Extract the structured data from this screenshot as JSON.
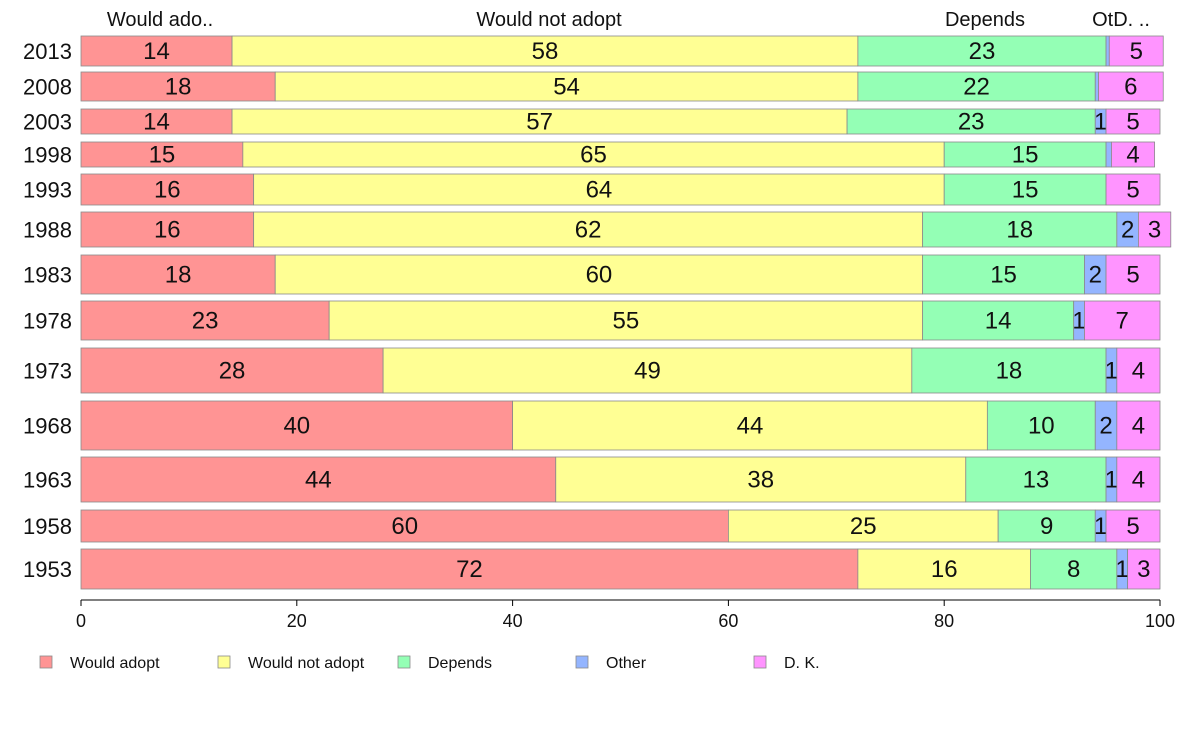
{
  "chart_data": {
    "type": "bar",
    "orientation": "horizontal",
    "stacked": true,
    "xlim": [
      0,
      100
    ],
    "x_ticks": [
      0,
      20,
      40,
      60,
      80,
      100
    ],
    "column_headers": [
      "Would ado..",
      "Would not adopt",
      "Depends",
      "OtD. .."
    ],
    "legend_position": "bottom",
    "colors": {
      "Would adopt": "#ff9494",
      "Would not adopt": "#ffff94",
      "Depends": "#94ffb5",
      "Other": "#94b5ff",
      "D. K.": "#ff94ff"
    },
    "series_names": [
      "Would adopt",
      "Would not adopt",
      "Depends",
      "Other",
      "D. K."
    ],
    "categories": [
      "2013",
      "2008",
      "2003",
      "1998",
      "1993",
      "1988",
      "1983",
      "1978",
      "1973",
      "1968",
      "1963",
      "1958",
      "1953"
    ],
    "rows": [
      {
        "year": "2013",
        "values": [
          14,
          58,
          23,
          0.3,
          5
        ],
        "labels": [
          "14",
          "58",
          "23",
          "",
          "5"
        ]
      },
      {
        "year": "2008",
        "values": [
          18,
          54,
          22,
          0.3,
          6
        ],
        "labels": [
          "18",
          "54",
          "22",
          "",
          "6"
        ]
      },
      {
        "year": "2003",
        "values": [
          14,
          57,
          23,
          1,
          5
        ],
        "labels": [
          "14",
          "57",
          "23",
          "1",
          "5"
        ]
      },
      {
        "year": "1998",
        "values": [
          15,
          65,
          15,
          0.5,
          4
        ],
        "labels": [
          "15",
          "65",
          "15",
          "",
          "4"
        ]
      },
      {
        "year": "1993",
        "values": [
          16,
          64,
          15,
          0,
          5
        ],
        "labels": [
          "16",
          "64",
          "15",
          "",
          "5"
        ]
      },
      {
        "year": "1988",
        "values": [
          16,
          62,
          18,
          2,
          3
        ],
        "labels": [
          "16",
          "62",
          "18",
          "2",
          "3"
        ]
      },
      {
        "year": "1983",
        "values": [
          18,
          60,
          15,
          2,
          5
        ],
        "labels": [
          "18",
          "60",
          "15",
          "2",
          "5"
        ]
      },
      {
        "year": "1978",
        "values": [
          23,
          55,
          14,
          1,
          7
        ],
        "labels": [
          "23",
          "55",
          "14",
          "1",
          "7"
        ]
      },
      {
        "year": "1973",
        "values": [
          28,
          49,
          18,
          1,
          4
        ],
        "labels": [
          "28",
          "49",
          "18",
          "1",
          "4"
        ]
      },
      {
        "year": "1968",
        "values": [
          40,
          44,
          10,
          2,
          4
        ],
        "labels": [
          "40",
          "44",
          "10",
          "2",
          "4"
        ]
      },
      {
        "year": "1963",
        "values": [
          44,
          38,
          13,
          1,
          4
        ],
        "labels": [
          "44",
          "38",
          "13",
          "1",
          "4"
        ]
      },
      {
        "year": "1958",
        "values": [
          60,
          25,
          9,
          1,
          5
        ],
        "labels": [
          "60",
          "25",
          "9",
          "1",
          "5"
        ]
      },
      {
        "year": "1953",
        "values": [
          72,
          16,
          8,
          1,
          3
        ],
        "labels": [
          "72",
          "16",
          "8",
          "1",
          "3"
        ]
      }
    ]
  }
}
